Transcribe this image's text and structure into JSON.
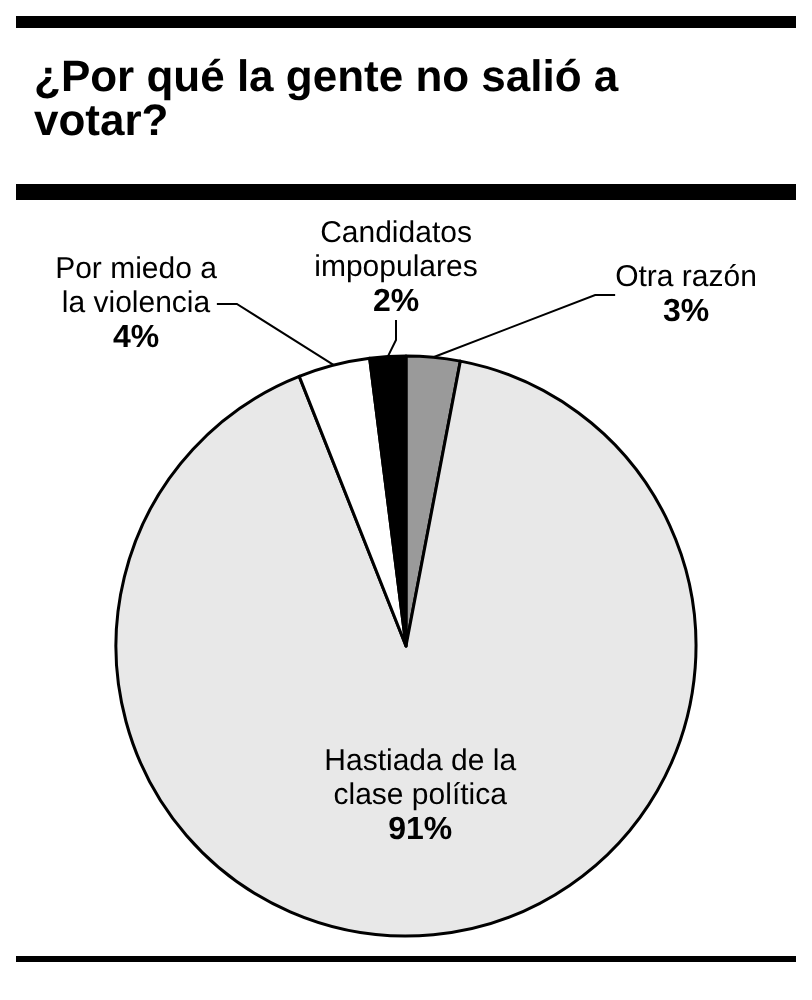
{
  "chart_data": {
    "type": "pie",
    "title": "¿Por qué la gente no salió a votar?",
    "categories": [
      "Otra razón",
      "Hastiada de la clase política",
      "Por miedo a la violencia",
      "Candidatos impopulares"
    ],
    "values": [
      3,
      91,
      4,
      2
    ],
    "value_labels": [
      "3%",
      "91%",
      "4%",
      "2%"
    ],
    "colors": [
      "#9a9a9a",
      "#e8e8e8",
      "#ffffff",
      "#000000"
    ],
    "legend": false
  }
}
